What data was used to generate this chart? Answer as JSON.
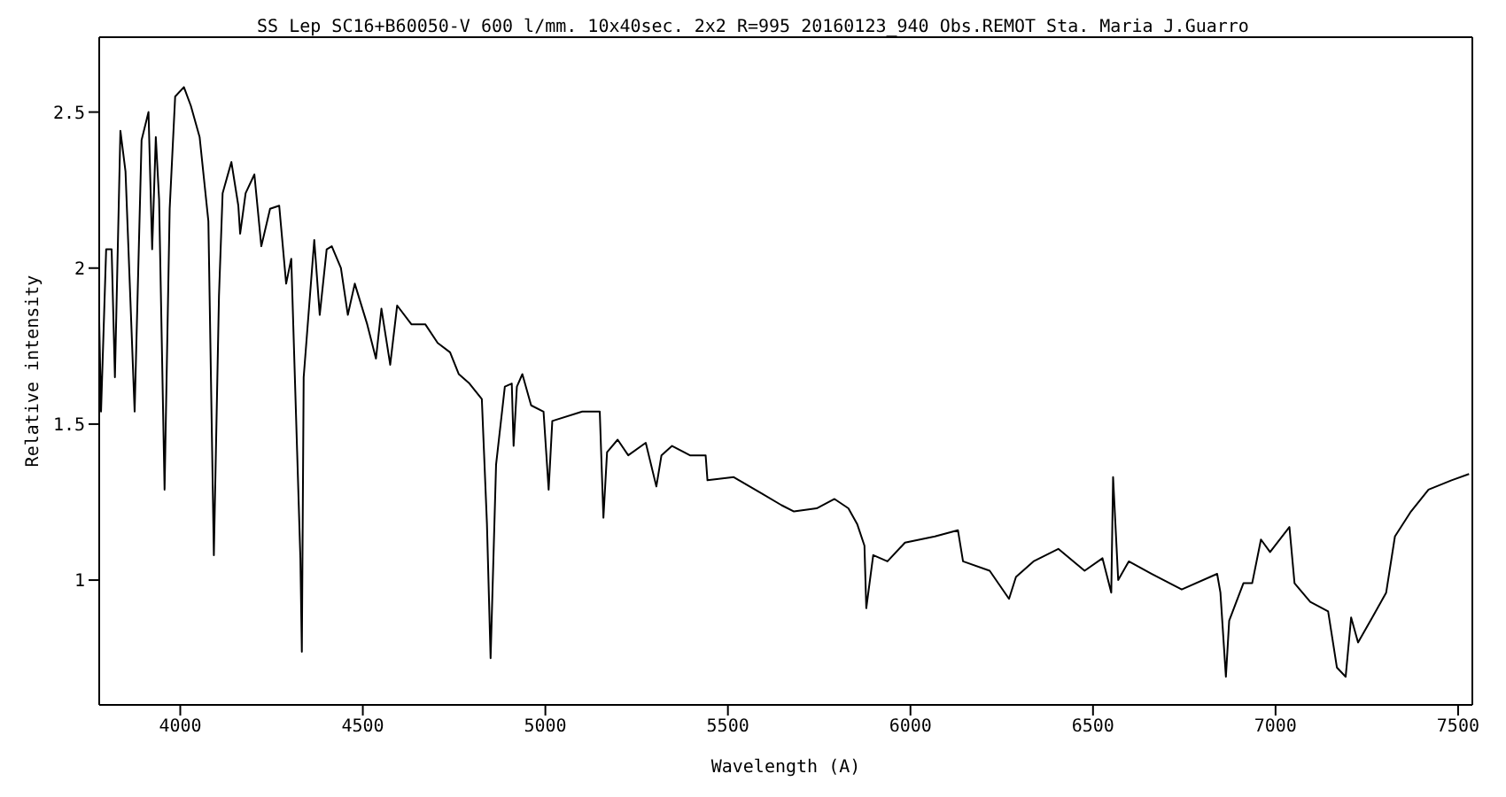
{
  "chart_data": {
    "type": "line",
    "title": "SS Lep  SC16+B60050-V 600 l/mm. 10x40sec.  2x2 R=995 20160123_940 Obs.REMOT Sta. Maria  J.Guarro",
    "xlabel": "Wavelength (A)",
    "ylabel": "Relative intensity",
    "xlim": [
      3778,
      7539
    ],
    "ylim": [
      0.6,
      2.74
    ],
    "xticks": [
      4000,
      4500,
      5000,
      5500,
      6000,
      6500,
      7000,
      7500
    ],
    "yticks": [
      1,
      1.5,
      2,
      2.5
    ],
    "grid": false,
    "legend": false,
    "marker": "none",
    "line_style": "solid",
    "series": [
      {
        "color": "#000000",
        "x": [
          3778,
          3783,
          3797,
          3812,
          3821,
          3836,
          3850,
          3875,
          3894,
          3913,
          3923,
          3933,
          3942,
          3957,
          3971,
          3986,
          4010,
          4029,
          4053,
          4077,
          4092,
          4106,
          4116,
          4140,
          4159,
          4164,
          4179,
          4203,
          4222,
          4246,
          4271,
          4290,
          4304,
          4329,
          4333,
          4338,
          4367,
          4382,
          4401,
          4415,
          4440,
          4459,
          4478,
          4512,
          4536,
          4551,
          4575,
          4594,
          4633,
          4671,
          4705,
          4739,
          4763,
          4792,
          4826,
          4840,
          4850,
          4865,
          4889,
          4908,
          4913,
          4922,
          4937,
          4961,
          4995,
          5009,
          5019,
          5101,
          5149,
          5159,
          5169,
          5198,
          5227,
          5275,
          5304,
          5318,
          5347,
          5396,
          5439,
          5444,
          5516,
          5589,
          5647,
          5681,
          5743,
          5792,
          5830,
          5854,
          5874,
          5879,
          5898,
          5937,
          5985,
          6067,
          6130,
          6144,
          6217,
          6270,
          6289,
          6337,
          6405,
          6477,
          6526,
          6550,
          6555,
          6569,
          6598,
          6661,
          6743,
          6840,
          6849,
          6864,
          6873,
          6912,
          6936,
          6960,
          6985,
          7038,
          7052,
          7095,
          7144,
          7168,
          7192,
          7207,
          7226,
          7265,
          7303,
          7327,
          7371,
          7419,
          7482,
          7530
        ],
        "values": [
          1.83,
          1.54,
          2.06,
          2.06,
          1.65,
          2.44,
          2.31,
          1.54,
          2.41,
          2.5,
          2.06,
          2.42,
          2.22,
          1.29,
          2.19,
          2.55,
          2.58,
          2.52,
          2.42,
          2.15,
          1.08,
          1.91,
          2.24,
          2.34,
          2.2,
          2.11,
          2.24,
          2.3,
          2.07,
          2.19,
          2.2,
          1.95,
          2.03,
          1.07,
          0.77,
          1.65,
          2.09,
          1.85,
          2.06,
          2.07,
          2,
          1.85,
          1.95,
          1.82,
          1.71,
          1.87,
          1.69,
          1.88,
          1.82,
          1.82,
          1.76,
          1.73,
          1.66,
          1.63,
          1.58,
          1.18,
          0.75,
          1.37,
          1.62,
          1.63,
          1.43,
          1.62,
          1.66,
          1.56,
          1.54,
          1.29,
          1.51,
          1.54,
          1.54,
          1.2,
          1.41,
          1.45,
          1.4,
          1.44,
          1.3,
          1.4,
          1.43,
          1.4,
          1.4,
          1.32,
          1.33,
          1.28,
          1.24,
          1.22,
          1.23,
          1.26,
          1.23,
          1.18,
          1.11,
          0.91,
          1.08,
          1.06,
          1.12,
          1.14,
          1.16,
          1.06,
          1.03,
          0.94,
          1.01,
          1.06,
          1.1,
          1.03,
          1.07,
          0.96,
          1.33,
          1,
          1.06,
          1.02,
          0.97,
          1.02,
          0.96,
          0.69,
          0.87,
          0.99,
          0.99,
          1.13,
          1.09,
          1.17,
          0.99,
          0.93,
          0.9,
          0.72,
          0.69,
          0.88,
          0.8,
          0.88,
          0.96,
          1.14,
          1.22,
          1.29,
          1.32,
          1.34
        ]
      }
    ]
  }
}
